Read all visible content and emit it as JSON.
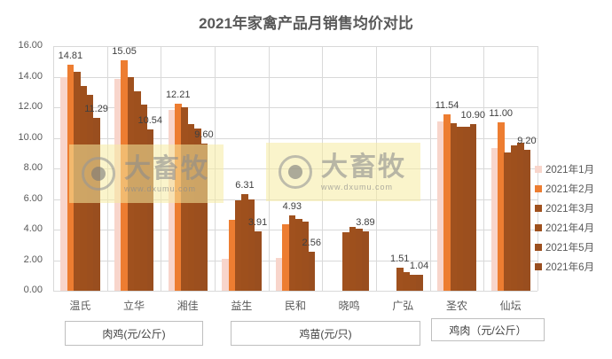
{
  "chart_data": {
    "type": "bar",
    "title": "2021年家禽产品月销售均价对比",
    "xlabel": "",
    "ylabel": "",
    "ylim": [
      0,
      16
    ],
    "yticks": [
      "0.00",
      "2.00",
      "4.00",
      "6.00",
      "8.00",
      "10.00",
      "12.00",
      "14.00",
      "16.00"
    ],
    "grid": true,
    "legend_position": "right",
    "categories": [
      "温氏",
      "立华",
      "湘佳",
      "益生",
      "民和",
      "晓鸣",
      "广弘",
      "圣农",
      "仙坛"
    ],
    "category_groups": [
      {
        "label": "肉鸡(元/公斤)",
        "categories": [
          "温氏",
          "立华",
          "湘佳"
        ]
      },
      {
        "label": "鸡苗(元/只)",
        "categories": [
          "益生",
          "民和",
          "晓鸣",
          "广弘"
        ]
      },
      {
        "label": "鸡肉（元/公斤）",
        "categories": [
          "圣农",
          "仙坛"
        ]
      }
    ],
    "series": [
      {
        "name": "2021年1月",
        "color": "#F8D5CB",
        "values": [
          14.0,
          13.85,
          11.8,
          2.1,
          2.15,
          null,
          null,
          11.1,
          9.35
        ]
      },
      {
        "name": "2021年2月",
        "color": "#ED7D31",
        "values": [
          14.81,
          15.05,
          12.21,
          4.65,
          4.35,
          null,
          null,
          11.54,
          11.0
        ]
      },
      {
        "name": "2021年3月",
        "color": "#A0511E",
        "values": [
          14.3,
          14.0,
          12.0,
          5.9,
          4.93,
          3.8,
          1.51,
          10.95,
          9.05
        ]
      },
      {
        "name": "2021年4月",
        "color": "#9E501D",
        "values": [
          13.4,
          13.05,
          10.9,
          6.31,
          4.7,
          4.2,
          1.2,
          10.7,
          9.5
        ]
      },
      {
        "name": "2021年5月",
        "color": "#9C4F1E",
        "values": [
          12.8,
          12.2,
          10.6,
          5.95,
          4.5,
          4.05,
          1.04,
          10.7,
          9.7
        ]
      },
      {
        "name": "2021年6月",
        "color": "#994E1F",
        "values": [
          11.29,
          10.54,
          9.6,
          3.91,
          2.56,
          3.89,
          1.04,
          10.9,
          9.2
        ]
      }
    ],
    "data_labels": [
      {
        "category": "温氏",
        "series": "2021年2月",
        "text": "14.81"
      },
      {
        "category": "温氏",
        "series": "2021年6月",
        "text": "11.29"
      },
      {
        "category": "立华",
        "series": "2021年2月",
        "text": "15.05"
      },
      {
        "category": "立华",
        "series": "2021年6月",
        "text": "10.54"
      },
      {
        "category": "湘佳",
        "series": "2021年2月",
        "text": "12.21"
      },
      {
        "category": "湘佳",
        "series": "2021年6月",
        "text": "9.60"
      },
      {
        "category": "益生",
        "series": "2021年4月",
        "text": "6.31"
      },
      {
        "category": "益生",
        "series": "2021年6月",
        "text": "3.91"
      },
      {
        "category": "民和",
        "series": "2021年3月",
        "text": "4.93"
      },
      {
        "category": "民和",
        "series": "2021年6月",
        "text": "2.56"
      },
      {
        "category": "晓鸣",
        "series": "2021年6月",
        "text": "3.89"
      },
      {
        "category": "广弘",
        "series": "2021年3月",
        "text": "1.51"
      },
      {
        "category": "广弘",
        "series": "2021年6月",
        "text": "1.04"
      },
      {
        "category": "圣农",
        "series": "2021年2月",
        "text": "11.54"
      },
      {
        "category": "圣农",
        "series": "2021年6月",
        "text": "10.90"
      },
      {
        "category": "仙坛",
        "series": "2021年2月",
        "text": "11.00"
      },
      {
        "category": "仙坛",
        "series": "2021年6月",
        "text": "9.20"
      }
    ]
  },
  "watermark": {
    "brand": "大畜牧",
    "url": "www.dxumu.com"
  }
}
